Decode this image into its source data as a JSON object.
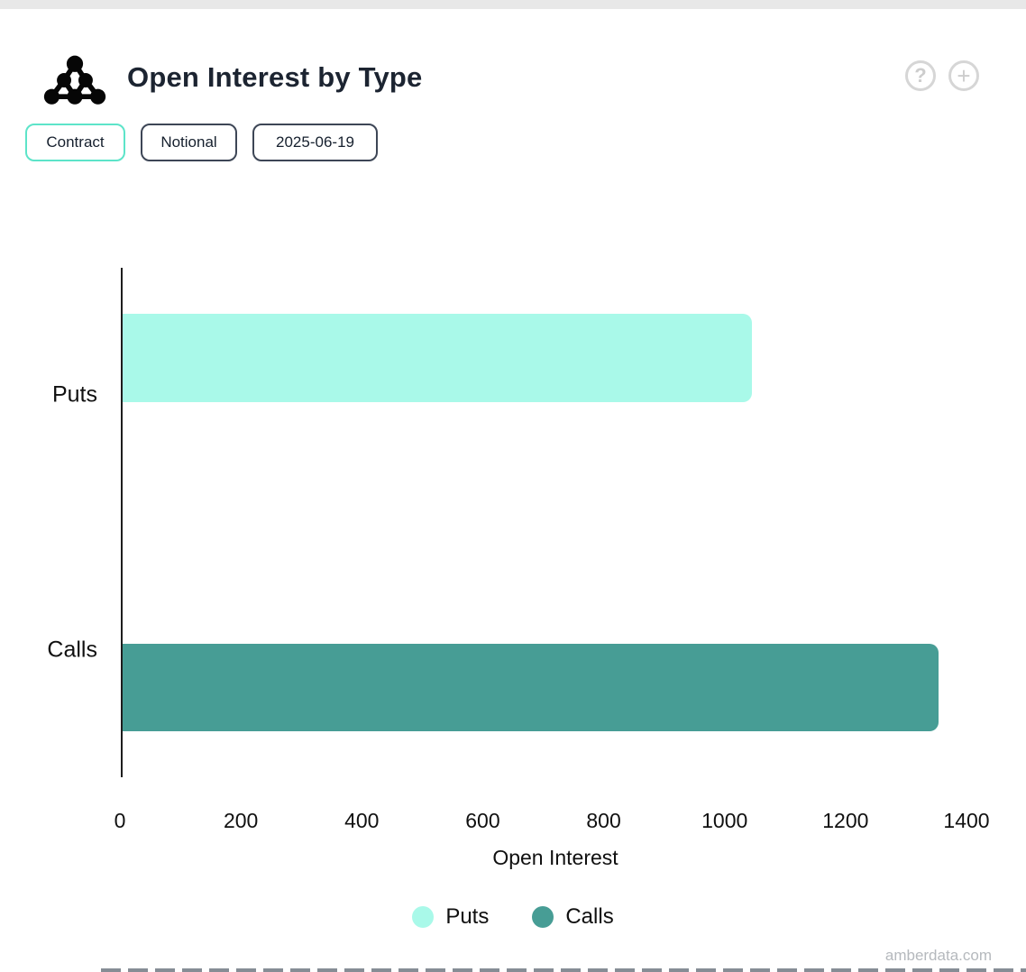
{
  "header": {
    "title": "Open Interest by Type",
    "help_label": "?",
    "add_label": "+"
  },
  "toolbar": {
    "buttons": [
      {
        "label": "Contract",
        "selected": true
      },
      {
        "label": "Notional",
        "selected": false
      },
      {
        "label": "2025-06-19",
        "selected": false
      }
    ]
  },
  "chart_data": {
    "type": "bar",
    "orientation": "horizontal",
    "title": "Open Interest by Type",
    "categories": [
      "Puts",
      "Calls"
    ],
    "values": [
      1040,
      1350
    ],
    "colors": [
      "#A9F9E9",
      "#479D95"
    ],
    "xlabel": "Open Interest",
    "xticks": [
      0,
      200,
      400,
      600,
      800,
      1000,
      1200,
      1400
    ],
    "xlim": [
      0,
      1400
    ],
    "grid": false,
    "legend_position": "bottom"
  },
  "legend": {
    "items": [
      {
        "label": "Puts",
        "color": "#A9F9E9"
      },
      {
        "label": "Calls",
        "color": "#479D95"
      }
    ]
  },
  "footer": {
    "watermark": "amberdata.com"
  },
  "colors": {
    "accent_teal": "#5DE4C9",
    "dark_navy": "#1C2431",
    "puts_fill": "#A9F9E9",
    "calls_fill": "#479D95"
  }
}
